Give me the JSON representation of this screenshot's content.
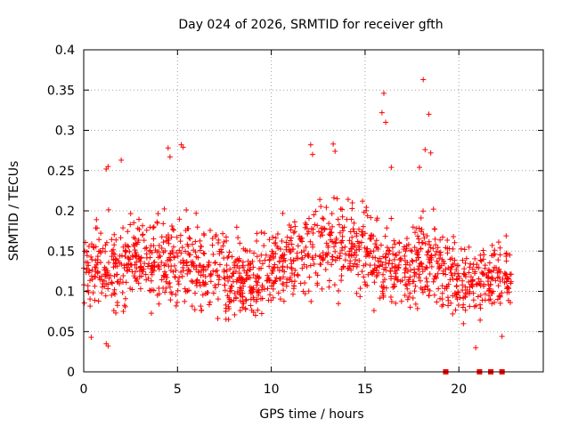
{
  "chart_data": {
    "type": "scatter",
    "title": "Day 024 of 2026, SRMTID for receiver gfth",
    "xlabel": "GPS time / hours",
    "ylabel": "SRMTID / TECUs",
    "xlim": [
      0,
      24.5
    ],
    "ylim": [
      0,
      0.4
    ],
    "x_ticks": [
      0,
      5,
      10,
      15,
      20
    ],
    "x_tick_labels": [
      "0",
      "5",
      "10",
      "15",
      "20"
    ],
    "y_ticks": [
      0,
      0.05,
      0.1,
      0.15,
      0.2,
      0.25,
      0.3,
      0.35,
      0.4
    ],
    "y_tick_labels": [
      "0",
      "0.05",
      "0.1",
      "0.15",
      "0.2",
      "0.25",
      "0.3",
      "0.35",
      "0.4"
    ],
    "grid": true,
    "marker": "plus",
    "color": "#ff0000",
    "envelope": {
      "hours": [
        0,
        1,
        2,
        3,
        4,
        5,
        6,
        7,
        8,
        9,
        10,
        11,
        12,
        13,
        14,
        15,
        16,
        17,
        18,
        19,
        20,
        21,
        22,
        22.8
      ],
      "median": [
        0.13,
        0.13,
        0.13,
        0.14,
        0.14,
        0.14,
        0.13,
        0.12,
        0.115,
        0.115,
        0.13,
        0.14,
        0.15,
        0.16,
        0.155,
        0.15,
        0.13,
        0.13,
        0.14,
        0.13,
        0.11,
        0.11,
        0.12,
        0.12
      ],
      "spread": [
        0.04,
        0.045,
        0.045,
        0.045,
        0.045,
        0.05,
        0.05,
        0.045,
        0.04,
        0.04,
        0.045,
        0.045,
        0.05,
        0.05,
        0.05,
        0.05,
        0.05,
        0.05,
        0.05,
        0.045,
        0.04,
        0.04,
        0.04,
        0.04
      ],
      "min_observed": 0.03,
      "max_observed": 0.363
    },
    "peaks": [
      {
        "x": 1.2,
        "y": 0.252
      },
      {
        "x": 1.3,
        "y": 0.255
      },
      {
        "x": 2.0,
        "y": 0.263
      },
      {
        "x": 4.5,
        "y": 0.278
      },
      {
        "x": 4.6,
        "y": 0.267
      },
      {
        "x": 5.2,
        "y": 0.282
      },
      {
        "x": 5.3,
        "y": 0.279
      },
      {
        "x": 12.1,
        "y": 0.282
      },
      {
        "x": 12.2,
        "y": 0.27
      },
      {
        "x": 13.3,
        "y": 0.283
      },
      {
        "x": 13.4,
        "y": 0.274
      },
      {
        "x": 15.9,
        "y": 0.322
      },
      {
        "x": 16.0,
        "y": 0.346
      },
      {
        "x": 16.1,
        "y": 0.31
      },
      {
        "x": 16.4,
        "y": 0.254
      },
      {
        "x": 17.9,
        "y": 0.254
      },
      {
        "x": 18.1,
        "y": 0.363
      },
      {
        "x": 18.2,
        "y": 0.276
      },
      {
        "x": 18.4,
        "y": 0.32
      },
      {
        "x": 18.5,
        "y": 0.272
      },
      {
        "x": 1.2,
        "y": 0.035
      },
      {
        "x": 1.3,
        "y": 0.032
      },
      {
        "x": 0.4,
        "y": 0.043
      },
      {
        "x": 20.9,
        "y": 0.03
      },
      {
        "x": 22.3,
        "y": 0.044
      }
    ],
    "zero_markers": [
      19.3,
      21.1,
      21.7,
      22.3
    ]
  }
}
